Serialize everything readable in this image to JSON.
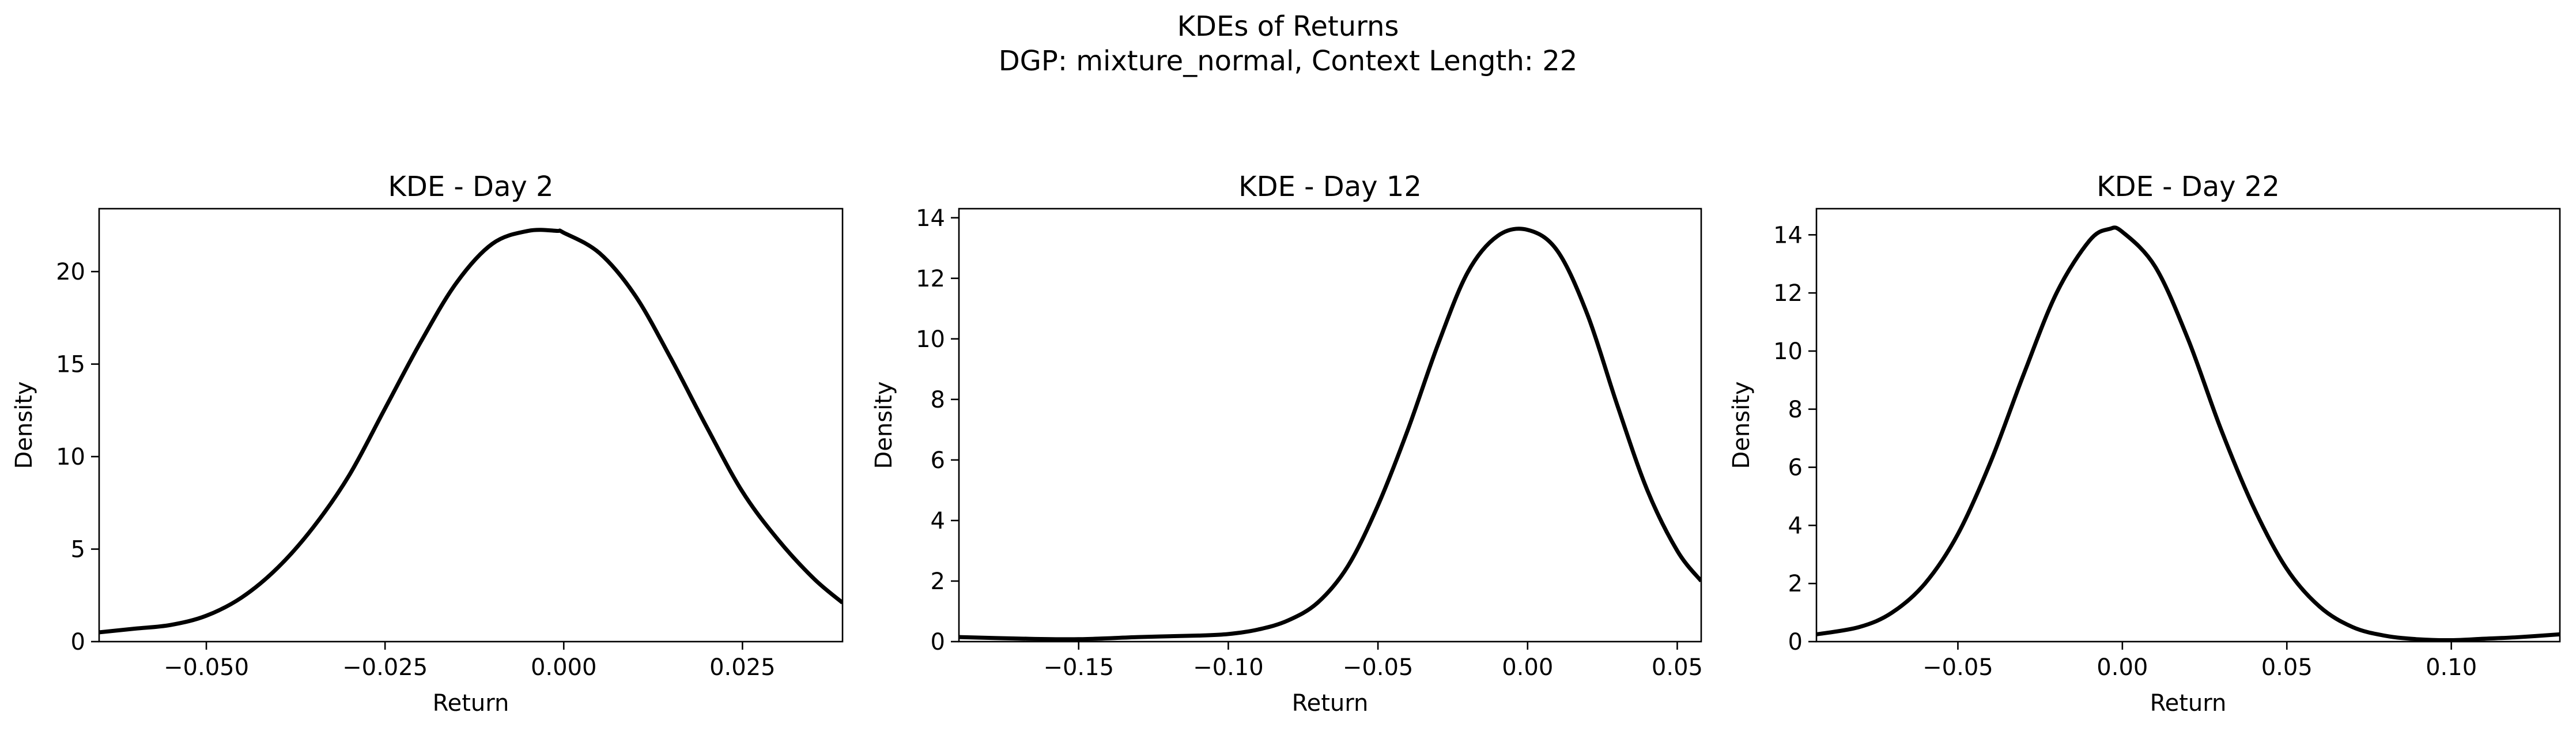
{
  "figure": {
    "title_line1": "KDEs of Returns",
    "title_line2": "DGP: mixture_normal, Context Length: 22"
  },
  "chart_data": [
    {
      "type": "line",
      "title": "KDE - Day 2",
      "xlabel": "Return",
      "ylabel": "Density",
      "xlim": [
        -0.065,
        0.039
      ],
      "ylim": [
        0,
        23.4
      ],
      "xticks": [
        -0.05,
        -0.025,
        0.0,
        0.025
      ],
      "xtick_labels": [
        "−0.050",
        "−0.025",
        "0.000",
        "0.025"
      ],
      "yticks": [
        0,
        5,
        10,
        15,
        20
      ],
      "ytick_labels": [
        "0",
        "5",
        "10",
        "15",
        "20"
      ],
      "grid": false,
      "series": [
        {
          "color": "#000000",
          "x": [
            -0.065,
            -0.06,
            -0.055,
            -0.05,
            -0.045,
            -0.04,
            -0.035,
            -0.03,
            -0.025,
            -0.02,
            -0.015,
            -0.01,
            -0.005,
            -0.001,
            0.0,
            0.005,
            0.01,
            0.015,
            0.02,
            0.025,
            0.03,
            0.035,
            0.039
          ],
          "y": [
            0.5,
            0.7,
            0.9,
            1.4,
            2.4,
            4.0,
            6.2,
            9.0,
            12.6,
            16.2,
            19.4,
            21.5,
            22.2,
            22.2,
            22.1,
            21.0,
            18.7,
            15.3,
            11.6,
            8.1,
            5.5,
            3.4,
            2.1
          ]
        }
      ]
    },
    {
      "type": "line",
      "title": "KDE - Day 12",
      "xlabel": "Return",
      "ylabel": "Density",
      "xlim": [
        -0.19,
        0.058
      ],
      "ylim": [
        0,
        14.3
      ],
      "xticks": [
        -0.15,
        -0.1,
        -0.05,
        0.0,
        0.05
      ],
      "xtick_labels": [
        "−0.15",
        "−0.10",
        "−0.05",
        "0.00",
        "0.05"
      ],
      "yticks": [
        0,
        2,
        4,
        6,
        8,
        10,
        12,
        14
      ],
      "ytick_labels": [
        "0",
        "2",
        "4",
        "6",
        "8",
        "10",
        "12",
        "14"
      ],
      "grid": false,
      "series": [
        {
          "color": "#000000",
          "x": [
            -0.19,
            -0.17,
            -0.15,
            -0.13,
            -0.11,
            -0.1,
            -0.09,
            -0.08,
            -0.07,
            -0.06,
            -0.05,
            -0.04,
            -0.03,
            -0.02,
            -0.01,
            0.0,
            0.01,
            0.02,
            0.03,
            0.04,
            0.05,
            0.058
          ],
          "y": [
            0.15,
            0.1,
            0.08,
            0.15,
            0.2,
            0.25,
            0.4,
            0.7,
            1.3,
            2.5,
            4.5,
            7.0,
            9.8,
            12.2,
            13.4,
            13.6,
            12.9,
            10.8,
            7.8,
            5.0,
            3.0,
            2.0
          ]
        }
      ]
    },
    {
      "type": "line",
      "title": "KDE - Day 22",
      "xlabel": "Return",
      "ylabel": "Density",
      "xlim": [
        -0.093,
        0.133
      ],
      "ylim": [
        0,
        14.9
      ],
      "xticks": [
        -0.05,
        0.0,
        0.05,
        0.1
      ],
      "xtick_labels": [
        "−0.05",
        "0.00",
        "0.05",
        "0.10"
      ],
      "yticks": [
        0,
        2,
        4,
        6,
        8,
        10,
        12,
        14
      ],
      "ytick_labels": [
        "0",
        "2",
        "4",
        "6",
        "8",
        "10",
        "12",
        "14"
      ],
      "grid": false,
      "series": [
        {
          "color": "#000000",
          "x": [
            -0.093,
            -0.08,
            -0.07,
            -0.06,
            -0.05,
            -0.04,
            -0.03,
            -0.02,
            -0.01,
            -0.004,
            0.0,
            0.01,
            0.02,
            0.03,
            0.04,
            0.05,
            0.06,
            0.07,
            0.08,
            0.09,
            0.1,
            0.11,
            0.12,
            0.133
          ],
          "y": [
            0.25,
            0.5,
            1.0,
            2.0,
            3.7,
            6.2,
            9.2,
            12.0,
            13.8,
            14.2,
            14.1,
            12.9,
            10.4,
            7.3,
            4.6,
            2.5,
            1.2,
            0.5,
            0.2,
            0.08,
            0.05,
            0.1,
            0.15,
            0.25
          ]
        }
      ]
    }
  ]
}
